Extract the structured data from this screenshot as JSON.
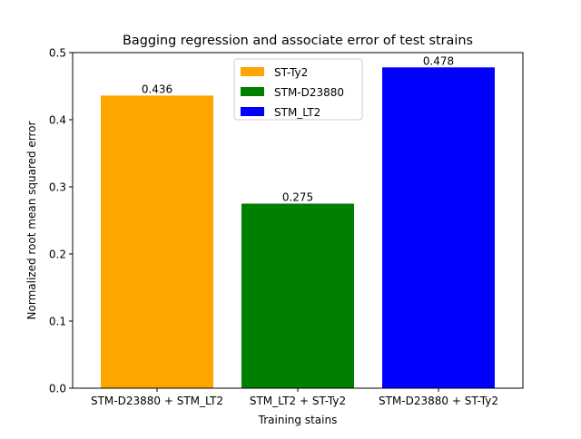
{
  "chart_data": {
    "type": "bar",
    "title": "Bagging regression and associate error of test strains",
    "xlabel": "Training stains",
    "ylabel": "Normalized root mean squared error",
    "categories": [
      "STM-D23880 + STM_LT2",
      "STM_LT2 + ST-Ty2",
      "STM-D23880 + ST-Ty2"
    ],
    "values": [
      0.436,
      0.275,
      0.478
    ],
    "value_labels": [
      "0.436",
      "0.275",
      "0.478"
    ],
    "colors": [
      "#ffa500",
      "#008000",
      "#0000ff"
    ],
    "ylim": [
      0,
      0.5
    ],
    "yticks": [
      0.0,
      0.1,
      0.2,
      0.3,
      0.4,
      0.5
    ],
    "ytick_labels": [
      "0.0",
      "0.1",
      "0.2",
      "0.3",
      "0.4",
      "0.5"
    ],
    "grid": false,
    "legend": {
      "placement": "upper-center",
      "entries": [
        {
          "label": "ST-Ty2",
          "color": "#ffa500"
        },
        {
          "label": "STM-D23880",
          "color": "#008000"
        },
        {
          "label": "STM_LT2",
          "color": "#0000ff"
        }
      ]
    }
  }
}
